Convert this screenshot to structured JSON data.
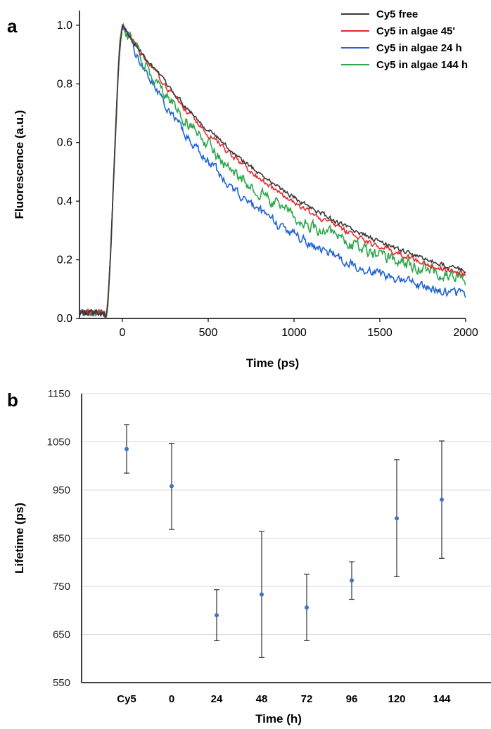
{
  "chart_data": [
    {
      "panel": "a",
      "type": "line",
      "xlabel": "Time (ps)",
      "ylabel": "Fluorescence (a.u.)",
      "xlim": [
        -250,
        2000
      ],
      "ylim": [
        0,
        1.05
      ],
      "xticks": [
        0,
        500,
        1000,
        1500,
        2000
      ],
      "yticks": [
        0.0,
        0.2,
        0.4,
        0.6,
        0.8,
        1.0
      ],
      "grid": false,
      "legend_position": "top-right",
      "rise": {
        "baseline_end": -100,
        "peak_time": 0
      },
      "series": [
        {
          "name": "Cy5 free",
          "color": "#3a3a3a",
          "lifetime_ps": 1160,
          "noise": 0.006,
          "end_value": 0.16
        },
        {
          "name": "Cy5 in algae 45'",
          "color": "#e8282b",
          "lifetime_ps": 1090,
          "noise": 0.007,
          "end_value": 0.15
        },
        {
          "name": "Cy5 in algae 24 h",
          "color": "#1f63d6",
          "lifetime_ps": 800,
          "noise": 0.012,
          "end_value": 0.08
        },
        {
          "name": "Cy5 in algae 144 h",
          "color": "#2aa84a",
          "lifetime_ps": 920,
          "noise": 0.016,
          "end_value": 0.14
        }
      ]
    },
    {
      "panel": "b",
      "type": "scatter",
      "xlabel": "Time (h)",
      "ylabel": "Lifetime (ps)",
      "ylim": [
        550,
        1150
      ],
      "yticks": [
        550,
        650,
        750,
        850,
        950,
        1050,
        1150
      ],
      "grid": true,
      "categories": [
        "Cy5",
        "0",
        "24",
        "48",
        "72",
        "96",
        "120",
        "144"
      ],
      "values": [
        1035,
        958,
        690,
        733,
        706,
        762,
        891,
        930
      ],
      "error_low": [
        985,
        868,
        637,
        602,
        637,
        723,
        770,
        808
      ],
      "error_high": [
        1086,
        1047,
        743,
        864,
        775,
        801,
        1013,
        1052
      ],
      "marker_color": "#3f73c4",
      "errorbar_color": "#333333"
    }
  ],
  "labels": {
    "a": "a",
    "b": "b"
  }
}
